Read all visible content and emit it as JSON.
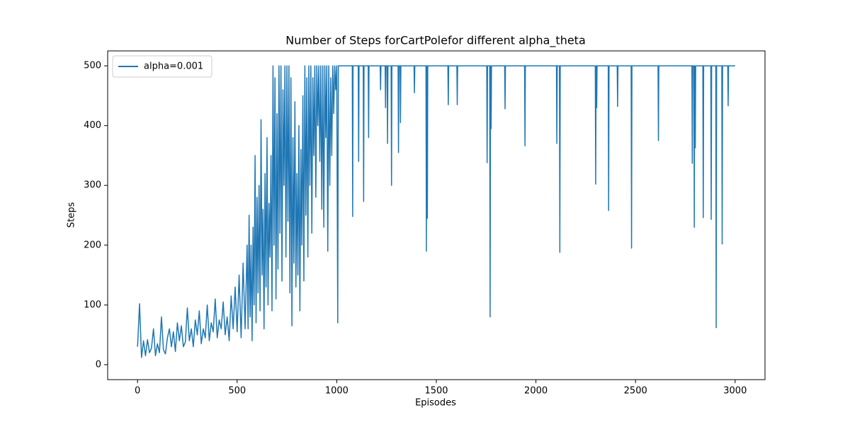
{
  "chart_data": {
    "type": "line",
    "title": "Number of Steps forCartPolefor different alpha_theta",
    "xlabel": "Episodes",
    "ylabel": "Steps",
    "xlim": [
      -150,
      3150
    ],
    "ylim": [
      -25,
      525
    ],
    "xticks": [
      0,
      500,
      1000,
      1500,
      2000,
      2500,
      3000
    ],
    "yticks": [
      0,
      100,
      200,
      300,
      400,
      500
    ],
    "legend": "upper left",
    "x": [
      0,
      10,
      20,
      30,
      40,
      50,
      60,
      70,
      80,
      90,
      100,
      110,
      120,
      130,
      140,
      150,
      160,
      170,
      180,
      190,
      200,
      210,
      220,
      230,
      240,
      250,
      260,
      270,
      280,
      290,
      300,
      310,
      320,
      330,
      340,
      350,
      360,
      370,
      380,
      390,
      400,
      410,
      420,
      430,
      440,
      450,
      460,
      470,
      480,
      490,
      500,
      510,
      520,
      530,
      540,
      550,
      555,
      560,
      565,
      570,
      575,
      580,
      585,
      590,
      595,
      600,
      605,
      610,
      615,
      620,
      625,
      630,
      635,
      640,
      645,
      650,
      655,
      660,
      665,
      670,
      675,
      680,
      685,
      690,
      695,
      700,
      705,
      710,
      715,
      720,
      725,
      730,
      735,
      740,
      745,
      750,
      755,
      760,
      765,
      770,
      775,
      780,
      785,
      790,
      795,
      800,
      805,
      810,
      815,
      820,
      825,
      830,
      835,
      840,
      845,
      850,
      855,
      860,
      865,
      870,
      875,
      880,
      885,
      890,
      895,
      900,
      905,
      910,
      915,
      920,
      925,
      930,
      935,
      940,
      945,
      950,
      955,
      960,
      965,
      970,
      975,
      980,
      985,
      990,
      995,
      1000,
      1005,
      1008,
      1078,
      1080,
      1082,
      1108,
      1110,
      1112,
      1133,
      1135,
      1137,
      1158,
      1160,
      1162,
      1218,
      1220,
      1222,
      1243,
      1245,
      1247,
      1253,
      1255,
      1257,
      1273,
      1275,
      1277,
      1308,
      1310,
      1312,
      1318,
      1320,
      1322,
      1388,
      1390,
      1392,
      1448,
      1450,
      1452,
      1455,
      1457,
      1558,
      1560,
      1562,
      1603,
      1605,
      1607,
      1753,
      1755,
      1757,
      1768,
      1770,
      1772,
      1775,
      1777,
      1843,
      1845,
      1847,
      1943,
      1945,
      1947,
      2103,
      2105,
      2107,
      2118,
      2120,
      2122,
      2298,
      2300,
      2302,
      2305,
      2307,
      2363,
      2365,
      2367,
      2408,
      2410,
      2412,
      2478,
      2480,
      2482,
      2613,
      2615,
      2617,
      2783,
      2785,
      2787,
      2793,
      2795,
      2797,
      2800,
      2802,
      2838,
      2840,
      2842,
      2878,
      2880,
      2882,
      2903,
      2905,
      2907,
      2933,
      2935,
      2937,
      2963,
      2965,
      2967,
      3000
    ],
    "series": [
      {
        "name": "alpha=0.001",
        "color": "#1f77b4",
        "values": [
          30,
          102,
          12,
          40,
          15,
          42,
          20,
          28,
          60,
          15,
          35,
          20,
          80,
          25,
          18,
          45,
          60,
          30,
          55,
          22,
          70,
          40,
          65,
          30,
          38,
          95,
          40,
          60,
          30,
          75,
          50,
          90,
          35,
          60,
          45,
          100,
          40,
          70,
          55,
          110,
          45,
          75,
          60,
          105,
          50,
          80,
          40,
          115,
          60,
          130,
          55,
          150,
          45,
          170,
          60,
          200,
          60,
          250,
          80,
          200,
          40,
          230,
          100,
          350,
          70,
          280,
          120,
          300,
          90,
          410,
          150,
          260,
          60,
          320,
          130,
          380,
          100,
          270,
          180,
          350,
          90,
          500,
          200,
          480,
          110,
          420,
          160,
          500,
          220,
          500,
          140,
          460,
          300,
          500,
          180,
          500,
          240,
          500,
          120,
          480,
          65,
          380,
          170,
          440,
          130,
          320,
          150,
          400,
          90,
          360,
          200,
          450,
          140,
          500,
          250,
          480,
          180,
          500,
          300,
          500,
          220,
          480,
          350,
          500,
          280,
          500,
          400,
          500,
          340,
          500,
          260,
          500,
          230,
          500,
          380,
          500,
          190,
          500,
          300,
          480,
          350,
          500,
          420,
          500,
          460,
          500,
          70,
          500,
          500,
          248,
          500,
          500,
          340,
          500,
          500,
          273,
          500,
          500,
          380,
          500,
          500,
          460,
          500,
          500,
          430,
          500,
          500,
          370,
          500,
          500,
          300,
          500,
          500,
          355,
          500,
          500,
          405,
          500,
          500,
          455,
          500,
          500,
          190,
          500,
          245,
          500,
          500,
          435,
          500,
          500,
          435,
          500,
          500,
          338,
          500,
          500,
          80,
          500,
          395,
          500,
          500,
          428,
          500,
          500,
          366,
          500,
          500,
          370,
          500,
          500,
          188,
          500,
          500,
          302,
          500,
          430,
          500,
          500,
          258,
          500,
          500,
          432,
          500,
          500,
          195,
          500,
          500,
          375,
          500,
          500,
          337,
          500,
          500,
          230,
          500,
          363,
          500,
          500,
          246,
          500,
          500,
          243,
          500,
          500,
          62,
          500,
          500,
          202,
          500,
          500,
          433,
          500,
          500
        ]
      }
    ]
  }
}
